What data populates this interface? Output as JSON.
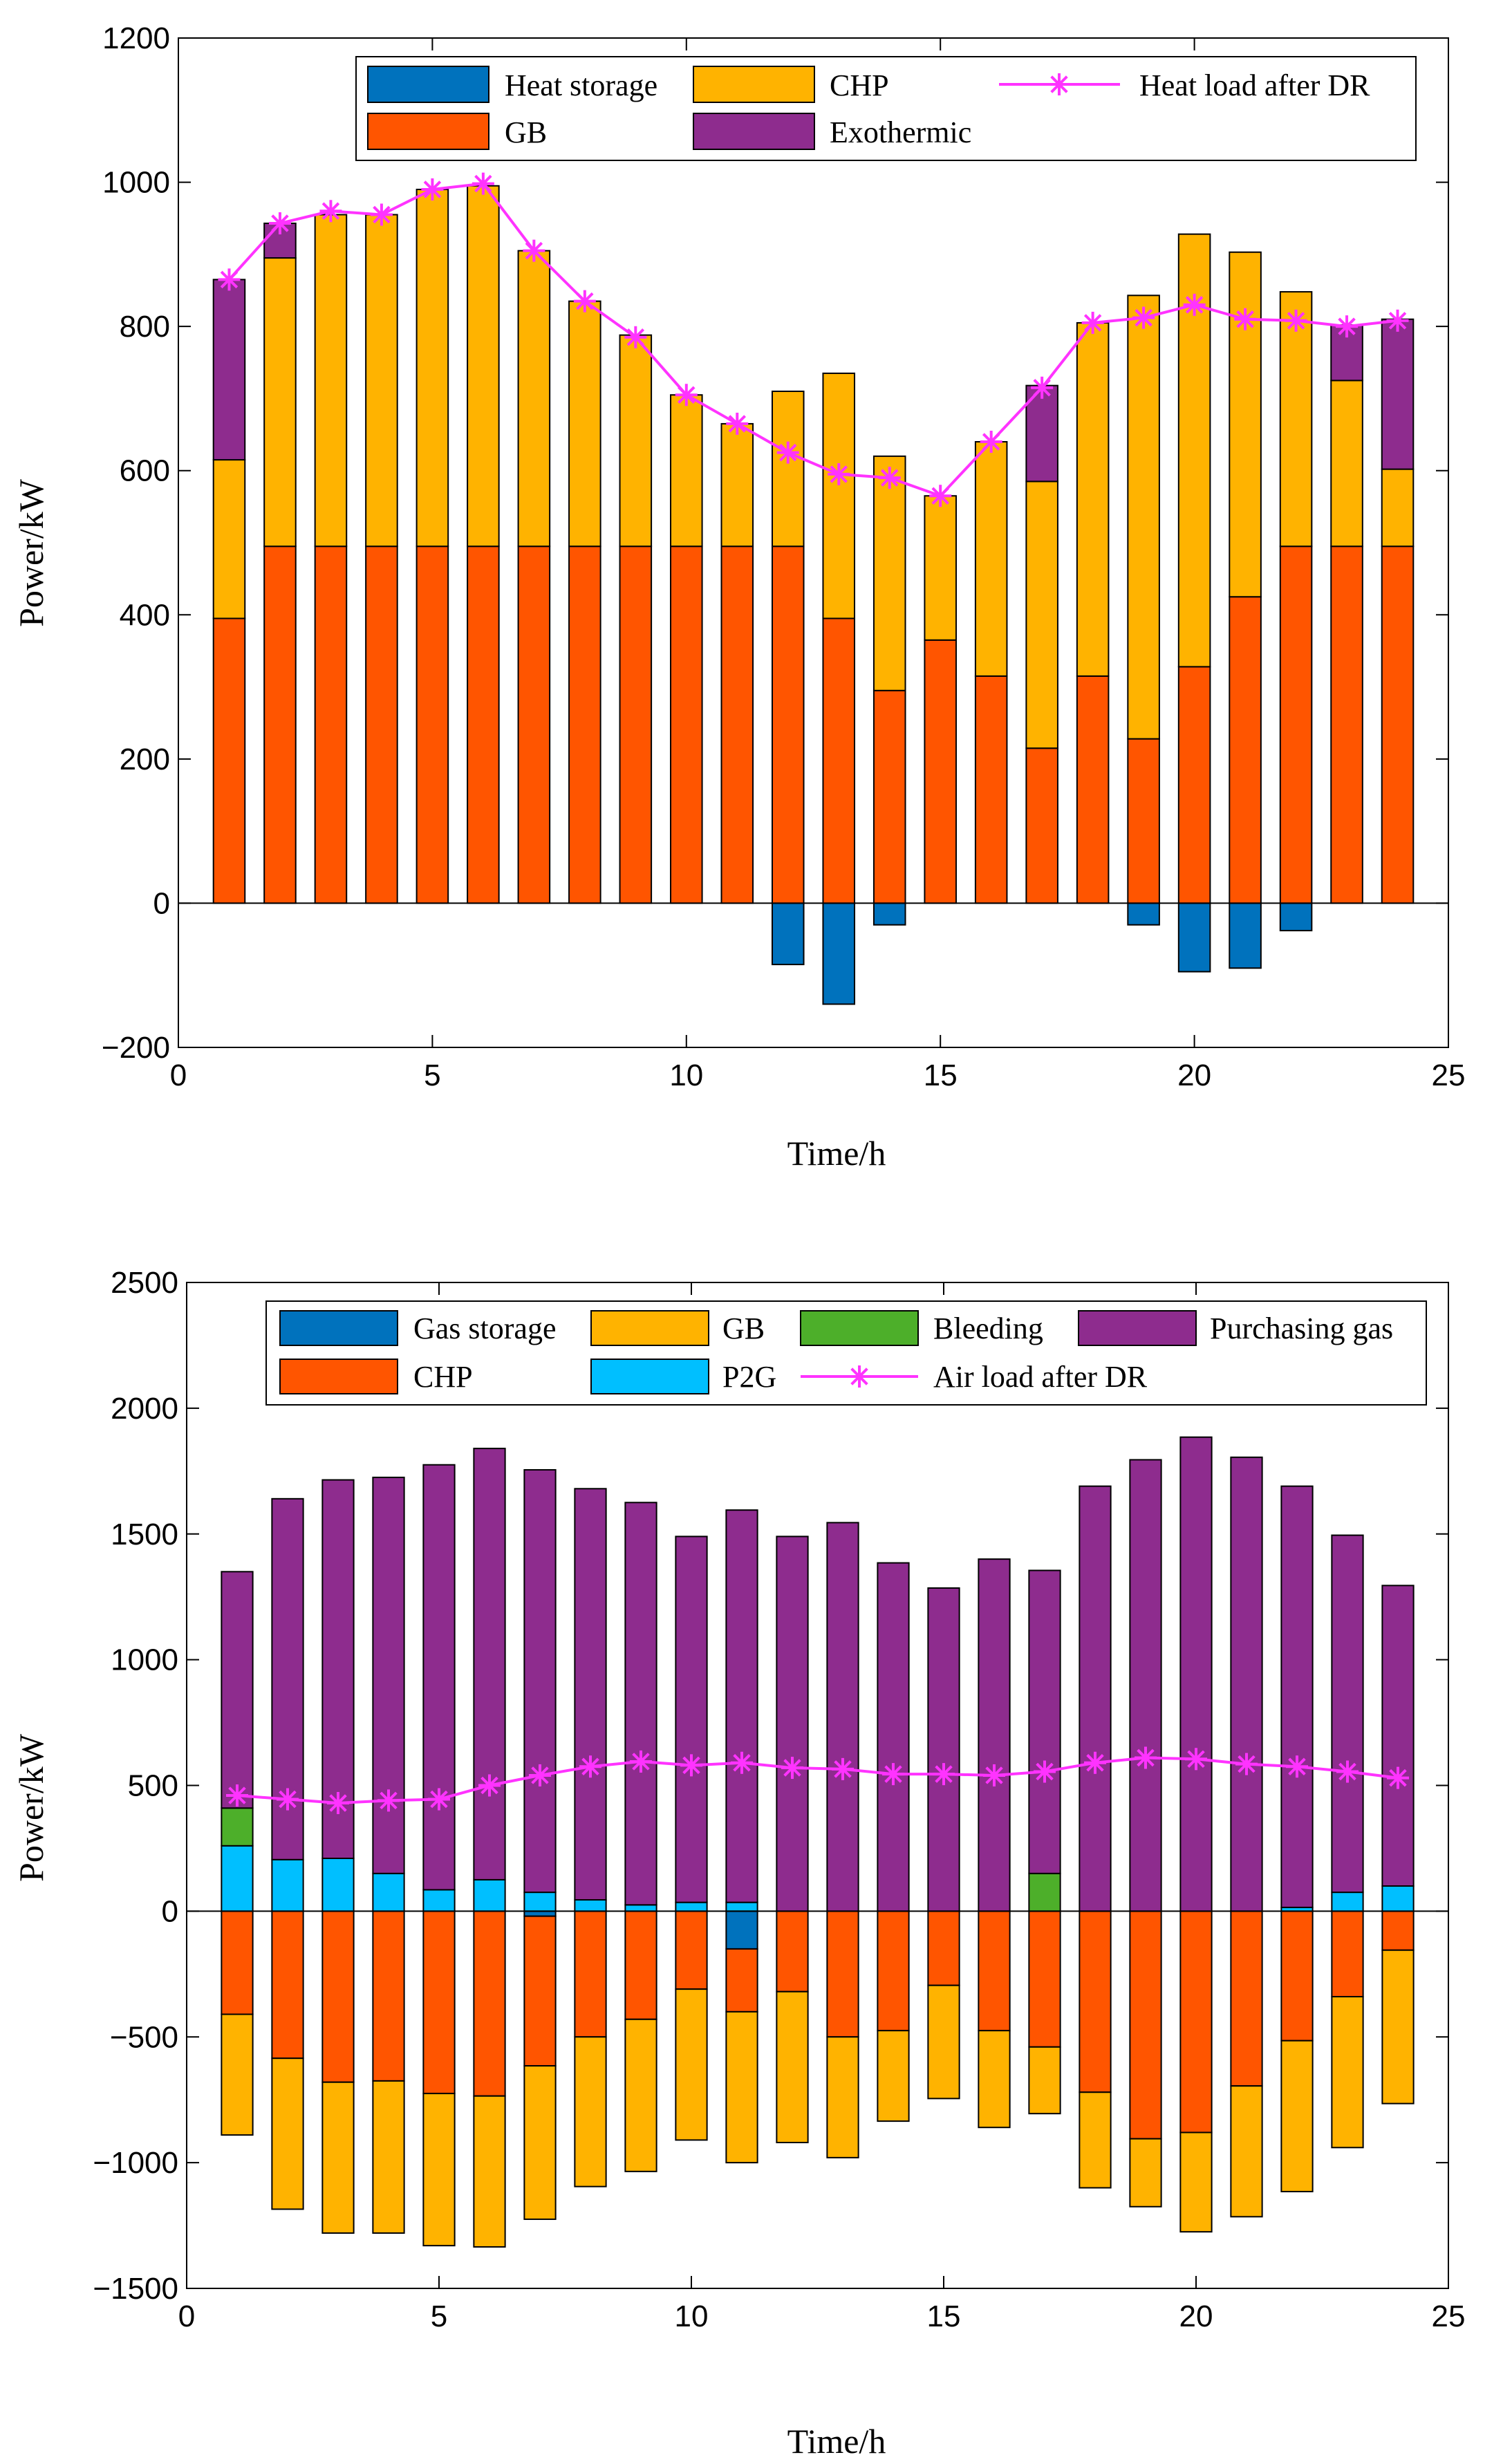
{
  "chart_data": [
    {
      "type": "bar",
      "subtype": "stacked-bar-with-line",
      "xlabel": "Time/h",
      "ylabel": "Power/kW",
      "xlim": [
        0,
        25
      ],
      "ylim": [
        -200,
        1200
      ],
      "xticks": [
        0,
        5,
        10,
        15,
        20,
        25
      ],
      "yticks": [
        -200,
        0,
        200,
        400,
        600,
        800,
        1000,
        1200
      ],
      "legend_position": "top",
      "x": [
        1,
        2,
        3,
        4,
        5,
        6,
        7,
        8,
        9,
        10,
        11,
        12,
        13,
        14,
        15,
        16,
        17,
        18,
        19,
        20,
        21,
        22,
        23,
        24
      ],
      "series": [
        {
          "name": "Heat storage",
          "color": "#0072BD",
          "values": [
            0,
            0,
            0,
            0,
            0,
            0,
            0,
            0,
            0,
            0,
            0,
            -85,
            -140,
            -30,
            0,
            0,
            0,
            0,
            -30,
            -95,
            -90,
            -38,
            0,
            0
          ]
        },
        {
          "name": "GB",
          "color": "#FF5500",
          "values": [
            395,
            495,
            495,
            495,
            495,
            495,
            495,
            495,
            495,
            495,
            495,
            495,
            395,
            295,
            365,
            315,
            215,
            315,
            228,
            328,
            425,
            495,
            495,
            495
          ]
        },
        {
          "name": "CHP",
          "color": "#FFB300",
          "values": [
            220,
            400,
            460,
            460,
            495,
            500,
            410,
            340,
            293,
            210,
            170,
            215,
            340,
            325,
            200,
            325,
            370,
            490,
            615,
            600,
            478,
            353,
            230,
            107
          ]
        },
        {
          "name": "Exothermic",
          "color": "#8E2C8E",
          "values": [
            250,
            48,
            0,
            0,
            0,
            0,
            0,
            0,
            0,
            0,
            0,
            0,
            0,
            0,
            0,
            0,
            133,
            0,
            0,
            0,
            0,
            0,
            77,
            208
          ]
        }
      ],
      "line": {
        "name": "Heat load after DR",
        "color": "#FF33FF",
        "values": [
          865,
          943,
          960,
          955,
          990,
          998,
          905,
          835,
          785,
          705,
          665,
          625,
          595,
          590,
          565,
          640,
          715,
          805,
          812,
          830,
          810,
          808,
          800,
          808
        ]
      },
      "legend_labels": {
        "heat_storage": "Heat storage",
        "chp": "CHP",
        "heat_load": "Heat load after DR",
        "gb": "GB",
        "exothermic": "Exothermic"
      }
    },
    {
      "type": "bar",
      "subtype": "stacked-bar-with-line",
      "xlabel": "Time/h",
      "ylabel": "Power/kW",
      "xlim": [
        0,
        25
      ],
      "ylim": [
        -1500,
        2500
      ],
      "xticks": [
        0,
        5,
        10,
        15,
        20,
        25
      ],
      "yticks": [
        -1500,
        -1000,
        -500,
        0,
        500,
        1000,
        1500,
        2000,
        2500
      ],
      "legend_position": "top",
      "x": [
        1,
        2,
        3,
        4,
        5,
        6,
        7,
        8,
        9,
        10,
        11,
        12,
        13,
        14,
        15,
        16,
        17,
        18,
        19,
        20,
        21,
        22,
        23,
        24
      ],
      "series": [
        {
          "name": "Gas storage",
          "color": "#0072BD",
          "values": [
            0,
            0,
            0,
            0,
            0,
            0,
            -20,
            0,
            0,
            0,
            -150,
            0,
            0,
            0,
            0,
            0,
            0,
            0,
            0,
            0,
            0,
            0,
            0,
            0
          ]
        },
        {
          "name": "CHP",
          "color": "#FF5500",
          "values": [
            -410,
            -585,
            -680,
            -675,
            -725,
            -735,
            -595,
            -500,
            -430,
            -310,
            -250,
            -320,
            -500,
            -475,
            -295,
            -475,
            -540,
            -720,
            -905,
            -880,
            -695,
            -515,
            -340,
            -155
          ]
        },
        {
          "name": "GB",
          "color": "#FFB300",
          "values": [
            -480,
            -600,
            -600,
            -605,
            -605,
            -600,
            -610,
            -595,
            -605,
            -600,
            -600,
            -600,
            -480,
            -360,
            -450,
            -385,
            -265,
            -380,
            -270,
            -395,
            -520,
            -600,
            -600,
            -610
          ]
        },
        {
          "name": "P2G",
          "color": "#00BFFF",
          "values": [
            260,
            205,
            210,
            150,
            85,
            125,
            75,
            45,
            25,
            35,
            35,
            0,
            0,
            0,
            0,
            0,
            0,
            0,
            0,
            0,
            0,
            15,
            75,
            100
          ]
        },
        {
          "name": "Bleeding",
          "color": "#4DAF2A",
          "values": [
            150,
            0,
            0,
            0,
            0,
            0,
            0,
            0,
            0,
            0,
            0,
            0,
            0,
            0,
            0,
            0,
            150,
            0,
            0,
            0,
            0,
            0,
            0,
            0
          ]
        },
        {
          "name": "Purchasing gas",
          "color": "#8E2C8E",
          "values": [
            940,
            1435,
            1505,
            1575,
            1690,
            1715,
            1680,
            1635,
            1600,
            1455,
            1560,
            1490,
            1545,
            1385,
            1285,
            1400,
            1205,
            1690,
            1795,
            1885,
            1805,
            1675,
            1420,
            1195
          ]
        }
      ],
      "line": {
        "name": "Air load after DR",
        "color": "#FF33FF",
        "values": [
          460,
          445,
          430,
          440,
          445,
          500,
          540,
          575,
          595,
          580,
          590,
          570,
          565,
          545,
          545,
          540,
          555,
          590,
          610,
          605,
          585,
          575,
          555,
          530
        ]
      },
      "legend_labels": {
        "gas_storage": "Gas storage",
        "gb": "GB",
        "bleeding": "Bleeding",
        "purchasing": "Purchasing gas",
        "chp": "CHP",
        "p2g": "P2G",
        "air_load": "Air load after DR"
      }
    }
  ]
}
